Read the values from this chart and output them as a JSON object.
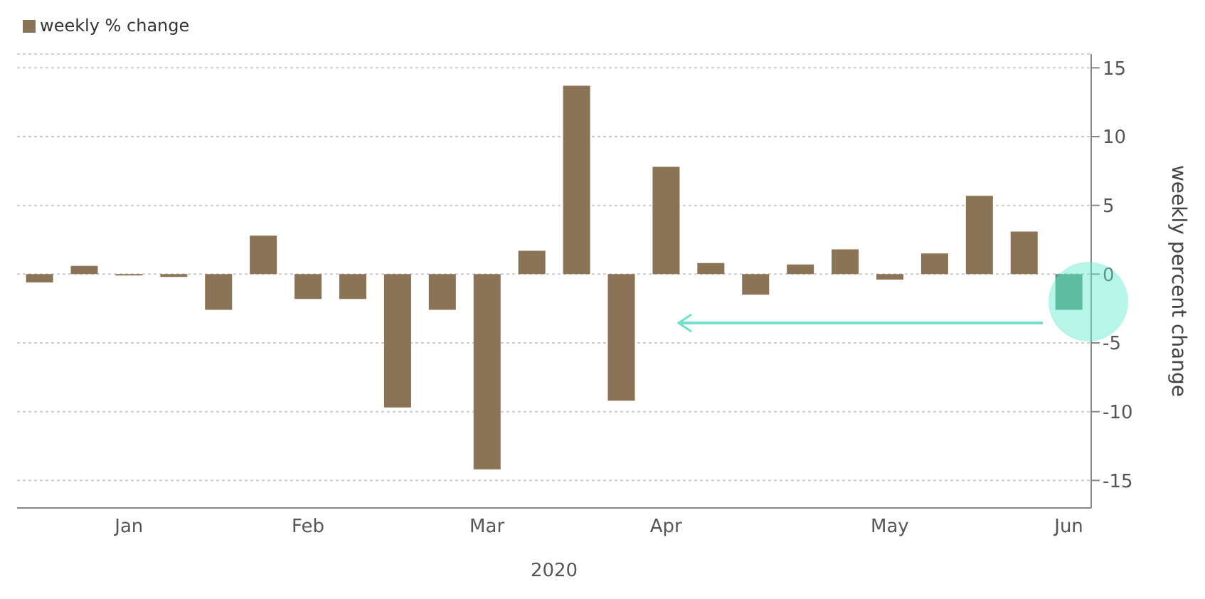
{
  "chart_data": {
    "type": "bar",
    "categories": [
      null,
      null,
      "Jan",
      null,
      null,
      null,
      "Feb",
      null,
      null,
      null,
      "Mar",
      null,
      null,
      null,
      "Apr",
      null,
      null,
      null,
      null,
      "May",
      null,
      null,
      null,
      "Jun"
    ],
    "series": [
      {
        "name": "weekly % change",
        "color": "#8b7355",
        "colors": [
          "#8b7355",
          "#8b7355",
          "#8b7355",
          "#8b7355",
          "#8b7355",
          "#8b7355",
          "#8b7355",
          "#8b7355",
          "#8b7355",
          "#8b7355",
          "#8b7355",
          "#8b7355",
          "#8b7355",
          "#8b7355",
          "#8b7355",
          "#8b7355",
          "#8b7355",
          "#8b7355",
          "#8b7355",
          "#8b7355",
          "#8b7355",
          "#8b7355",
          "#8b7355",
          "#5a9a78"
        ],
        "values": [
          -0.6,
          0.6,
          -0.1,
          -0.2,
          -2.6,
          2.8,
          -1.8,
          -1.8,
          -9.7,
          -2.6,
          -14.2,
          1.7,
          13.7,
          -9.2,
          7.8,
          0.8,
          -1.5,
          0.7,
          1.8,
          -0.4,
          1.5,
          5.7,
          3.1,
          -2.6
        ]
      }
    ],
    "xlabel": "2020",
    "ylabel": "weekly percent change",
    "ylim": [
      -17,
      16
    ],
    "yticks": [
      -15,
      -10,
      -5,
      0,
      5,
      10,
      15
    ],
    "grid": "y",
    "legend": "top left"
  }
}
